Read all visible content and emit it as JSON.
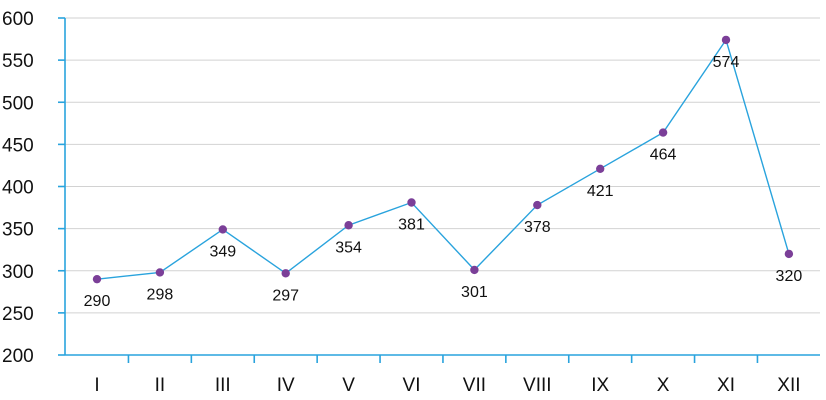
{
  "chart_data": {
    "type": "line",
    "categories": [
      "I",
      "II",
      "III",
      "IV",
      "V",
      "VI",
      "VII",
      "VIII",
      "IX",
      "X",
      "XI",
      "XII"
    ],
    "series": [
      {
        "values": [
          290,
          298,
          349,
          297,
          354,
          381,
          301,
          378,
          421,
          464,
          574,
          320
        ]
      }
    ],
    "data_labels": [
      "290",
      "298",
      "349",
      "297",
      "354",
      "381",
      "301",
      "378",
      "421",
      "464",
      "574",
      "320"
    ],
    "y_ticks": [
      "200",
      "250",
      "300",
      "350",
      "400",
      "450",
      "500",
      "550",
      "600"
    ],
    "ylim": [
      200,
      600
    ],
    "grid": "horizontal",
    "legend": "none",
    "title": "",
    "xlabel": "",
    "ylabel": "",
    "colors": {
      "line": "#29a3dd",
      "axis": "#29a3dd",
      "point": "#7b3f98",
      "grid": "#d2d2d2"
    }
  }
}
